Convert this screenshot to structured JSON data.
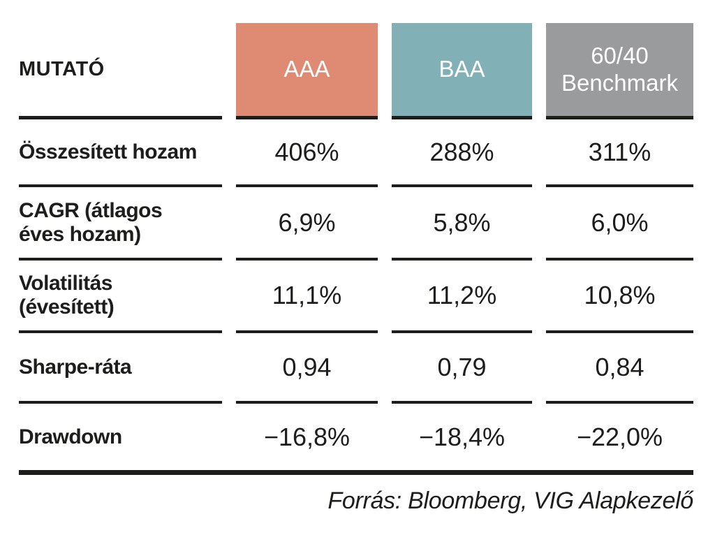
{
  "page": {
    "background": "#ffffff",
    "text_color": "#1d1d1b",
    "rule_color": "#1d1d1b"
  },
  "table": {
    "header": {
      "label_column_title": "MUTATÓ",
      "columns": [
        {
          "label": "AAA",
          "bg": "#df8a72",
          "text_color": "#ffffff"
        },
        {
          "label": "BAA",
          "bg": "#81b1b6",
          "text_color": "#ffffff"
        },
        {
          "label": "60/40\nBenchmark",
          "bg": "#9a9b9d",
          "text_color": "#ffffff"
        }
      ]
    },
    "rows": [
      {
        "label": "Összesített hozam",
        "values": [
          "406%",
          "288%",
          "311%"
        ]
      },
      {
        "label": "CAGR (átlagos\néves hozam)",
        "values": [
          "6,9%",
          "5,8%",
          "6,0%"
        ]
      },
      {
        "label": "Volatilitás\n(évesített)",
        "values": [
          "11,1%",
          "11,2%",
          "10,8%"
        ]
      },
      {
        "label": "Sharpe-ráta",
        "values": [
          "0,94",
          "0,79",
          "0,84"
        ]
      },
      {
        "label": "Drawdown",
        "values": [
          "−16,8%",
          "−18,4%",
          "−22,0%"
        ]
      }
    ]
  },
  "footer": {
    "source": "Forrás: Bloomberg, VIG Alapkezelő"
  },
  "chart_data": {
    "type": "table",
    "title": "",
    "columns": [
      "MUTATÓ",
      "AAA",
      "BAA",
      "60/40 Benchmark"
    ],
    "rows": [
      [
        "Összesített hozam",
        "406%",
        "288%",
        "311%"
      ],
      [
        "CAGR (átlagos éves hozam)",
        "6,9%",
        "5,8%",
        "6,0%"
      ],
      [
        "Volatilitás (évesített)",
        "11,1%",
        "11,2%",
        "10,8%"
      ],
      [
        "Sharpe-ráta",
        "0,94",
        "0,79",
        "0,84"
      ],
      [
        "Drawdown",
        "−16,8%",
        "−18,4%",
        "−22,0%"
      ]
    ],
    "numeric": {
      "osszesitett_hozam_pct": {
        "AAA": 406,
        "BAA": 288,
        "benchmark_60_40": 311
      },
      "cagr_pct": {
        "AAA": 6.9,
        "BAA": 5.8,
        "benchmark_60_40": 6.0
      },
      "volatilitas_pct": {
        "AAA": 11.1,
        "BAA": 11.2,
        "benchmark_60_40": 10.8
      },
      "sharpe_rata": {
        "AAA": 0.94,
        "BAA": 0.79,
        "benchmark_60_40": 0.84
      },
      "drawdown_pct": {
        "AAA": -16.8,
        "BAA": -18.4,
        "benchmark_60_40": -22.0
      }
    },
    "source": "Forrás: Bloomberg, VIG Alapkezelő"
  }
}
